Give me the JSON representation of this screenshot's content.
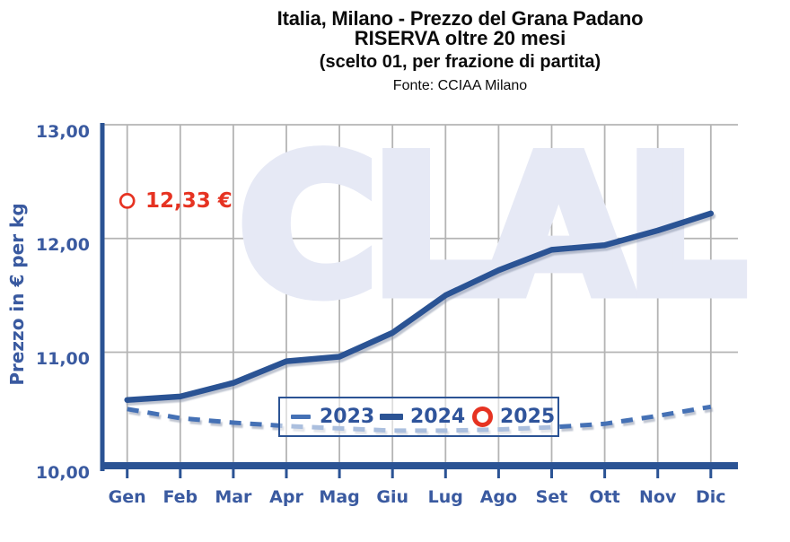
{
  "header": {
    "title_line1": "Italia, Milano - Prezzo del Grana Padano",
    "title_line2": "RISERVA oltre 20 mesi",
    "subtitle": "(scelto 01, per frazione di partita)",
    "source": "Fonte: CCIAA Milano"
  },
  "watermark": {
    "text": "CLAL"
  },
  "annotation": {
    "label": "12,33 €",
    "series": "2025",
    "month": "Gen",
    "value": 12.33
  },
  "legend": {
    "items": [
      {
        "label": "2023",
        "marker": "dashed-line"
      },
      {
        "label": "2024",
        "marker": "solid-line"
      },
      {
        "label": "2025",
        "marker": "open-circle"
      }
    ]
  },
  "colors": {
    "line_2023": "#4571b5",
    "line_2024": "#2b5394",
    "marker_2025": "#e63322",
    "axis_blue": "#2b5394",
    "axis_text": "#3a5aa0",
    "grid": "#b4b4b4",
    "watermark": "#e6e9f5",
    "annotation_red": "#e63322"
  },
  "chart_data": {
    "type": "line",
    "title": "Italia, Milano - Prezzo del Grana Padano RISERVA oltre 20 mesi (scelto 01, per frazione di partita)",
    "source": "Fonte: CCIAA Milano",
    "xlabel": "",
    "ylabel": "Prezzo in € per kg",
    "ylim": [
      10.0,
      13.0
    ],
    "y_ticks": [
      13.0,
      12.0,
      11.0,
      10.0
    ],
    "y_tick_labels": [
      "13,00",
      "12,00",
      "11,00",
      "10,00"
    ],
    "categories": [
      "Gen",
      "Feb",
      "Mar",
      "Apr",
      "Mag",
      "Giu",
      "Lug",
      "Ago",
      "Set",
      "Ott",
      "Nov",
      "Dic"
    ],
    "grid": true,
    "legend_position": "inside-bottom-center",
    "series": [
      {
        "name": "2023",
        "type": "line",
        "style": "dashed",
        "color": "#4571b5",
        "values": [
          10.5,
          10.42,
          10.38,
          10.35,
          10.33,
          10.31,
          10.31,
          10.32,
          10.34,
          10.37,
          10.44,
          10.52
        ]
      },
      {
        "name": "2024",
        "type": "line",
        "style": "solid",
        "color": "#2b5394",
        "values": [
          10.58,
          10.61,
          10.73,
          10.92,
          10.96,
          11.17,
          11.5,
          11.72,
          11.9,
          11.94,
          12.07,
          12.22
        ]
      },
      {
        "name": "2025",
        "type": "point",
        "style": "circle",
        "color": "#e63322",
        "values": [
          12.33
        ],
        "annotation": "12,33 €"
      }
    ]
  }
}
